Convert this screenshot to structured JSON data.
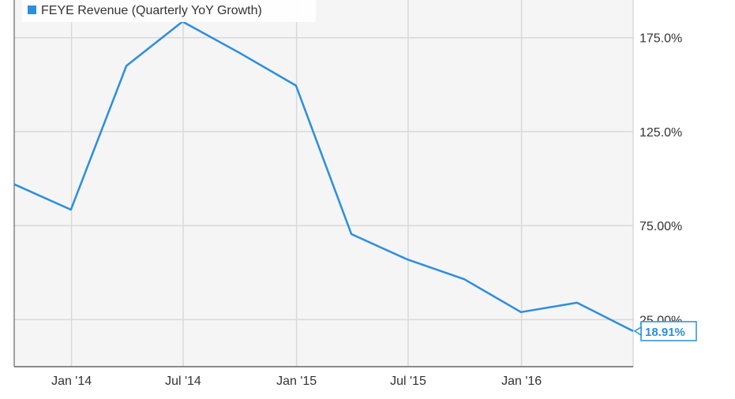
{
  "chart_data": {
    "type": "line",
    "title": "",
    "xlabel": "",
    "ylabel": "",
    "legend": {
      "position": "top-left",
      "label": "FEYE Revenue (Quarterly YoY Growth)"
    },
    "series": [
      {
        "name": "FEYE Revenue (Quarterly YoY Growth)",
        "color": "#2b8ee0",
        "points": [
          {
            "x": "2013-09-30",
            "y": 97.0
          },
          {
            "x": "2013-12-31",
            "y": 83.5
          },
          {
            "x": "2014-03-31",
            "y": 160.0
          },
          {
            "x": "2014-06-30",
            "y": 183.5
          },
          {
            "x": "2014-09-30",
            "y": 167.0
          },
          {
            "x": "2014-12-31",
            "y": 149.5
          },
          {
            "x": "2015-03-31",
            "y": 70.5
          },
          {
            "x": "2015-06-30",
            "y": 57.0
          },
          {
            "x": "2015-09-30",
            "y": 46.5
          },
          {
            "x": "2015-12-31",
            "y": 29.0
          },
          {
            "x": "2016-03-31",
            "y": 34.0
          },
          {
            "x": "2016-06-30",
            "y": 18.91
          }
        ]
      }
    ],
    "x_ticks": [
      {
        "label": "Jan '14",
        "x": "2014-01-01"
      },
      {
        "label": "Jul '14",
        "x": "2014-07-01"
      },
      {
        "label": "Jan '15",
        "x": "2015-01-01"
      },
      {
        "label": "Jul '15",
        "x": "2015-07-01"
      },
      {
        "label": "Jan '16",
        "x": "2016-01-01"
      }
    ],
    "y_ticks": [
      {
        "label": "25.00%",
        "value": 25
      },
      {
        "label": "75.00%",
        "value": 75
      },
      {
        "label": "125.0%",
        "value": 125
      },
      {
        "label": "175.0%",
        "value": 175
      }
    ],
    "x_range": [
      "2013-09-30",
      "2016-06-30"
    ],
    "ylim": [
      0,
      195
    ],
    "y_axis_side": "right",
    "grid": true,
    "last_value_label": "18.91%",
    "colors": {
      "line": "#2b8ee0",
      "plot_background": "#f5f5f5",
      "grid": "#d9d9d9",
      "axis": "#666666",
      "text": "#333333",
      "legend_swatch": "#2b8ee0"
    }
  }
}
